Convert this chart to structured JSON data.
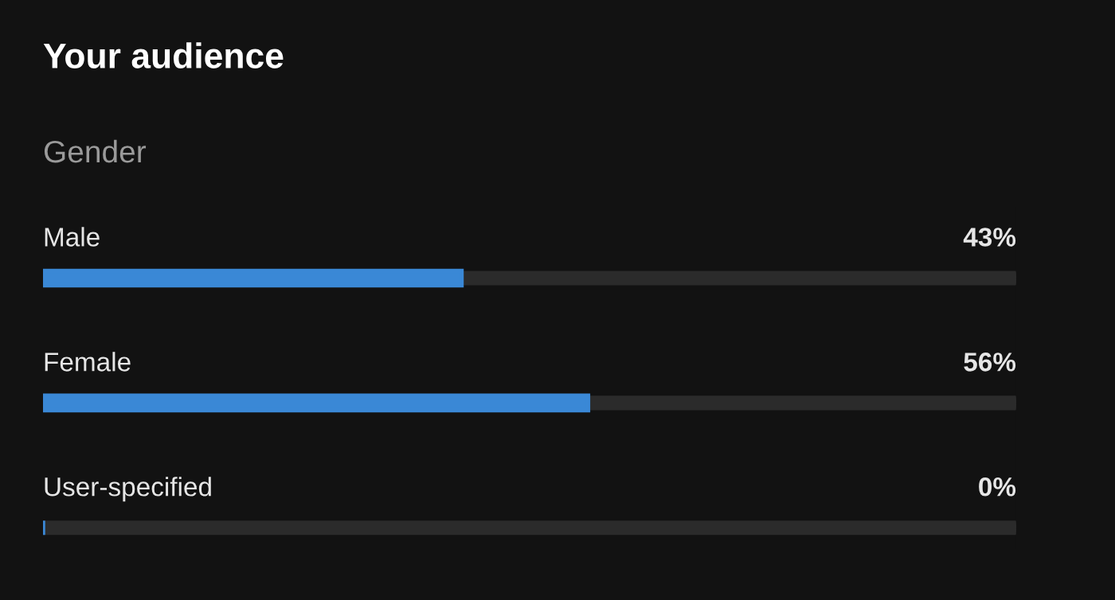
{
  "chart_data": {
    "type": "bar",
    "orientation": "horizontal",
    "title": "Your audience",
    "subtitle": "Gender",
    "categories": [
      "Male",
      "Female",
      "User-specified"
    ],
    "values": [
      43,
      56,
      0
    ],
    "value_labels": [
      "43%",
      "56%",
      "0%"
    ],
    "color": "#3a88d6",
    "xlim": [
      0,
      100
    ]
  }
}
